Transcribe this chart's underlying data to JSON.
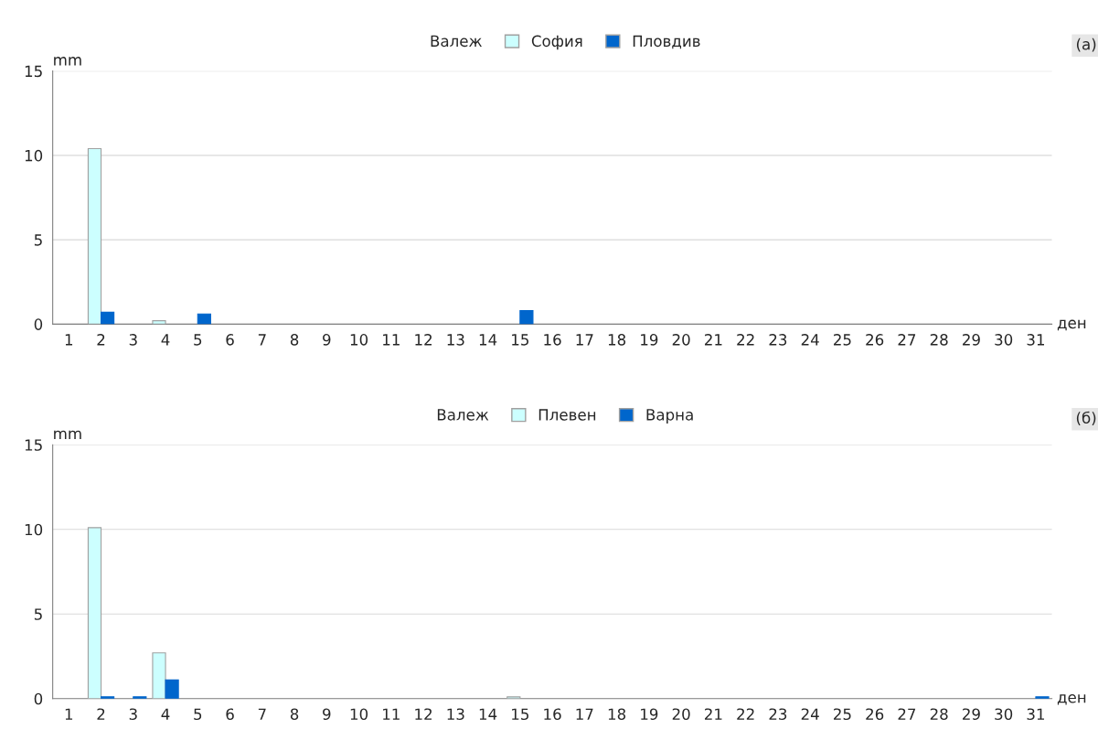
{
  "chart_data": [
    {
      "type": "bar",
      "categories": [
        "1",
        "2",
        "3",
        "4",
        "5",
        "6",
        "7",
        "8",
        "9",
        "10",
        "11",
        "12",
        "13",
        "14",
        "15",
        "16",
        "17",
        "18",
        "19",
        "20",
        "21",
        "22",
        "23",
        "24",
        "25",
        "26",
        "27",
        "28",
        "29",
        "30",
        "31"
      ],
      "series": [
        {
          "name": "София",
          "color": "#ccffff",
          "values": [
            0,
            10.4,
            0,
            0.2,
            0,
            0,
            0,
            0,
            0,
            0,
            0,
            0,
            0,
            0,
            0,
            0,
            0,
            0,
            0,
            0,
            0,
            0,
            0,
            0,
            0,
            0,
            0,
            0,
            0,
            0,
            0
          ]
        },
        {
          "name": "Пловдив",
          "color": "#0066cc",
          "values": [
            0,
            0.7,
            0,
            0,
            0.6,
            0,
            0,
            0,
            0,
            0,
            0,
            0,
            0,
            0,
            0.8,
            0,
            0,
            0,
            0,
            0,
            0,
            0,
            0,
            0,
            0,
            0,
            0,
            0,
            0,
            0,
            0
          ]
        }
      ],
      "legend_title": "Валеж",
      "legend": "top",
      "ylabel": "mm",
      "xlabel": "ден",
      "ylim": [
        0,
        15
      ],
      "yticks": [
        0,
        5,
        10,
        15
      ],
      "grid": "y",
      "annotations": [
        "(а)"
      ]
    },
    {
      "type": "bar",
      "categories": [
        "1",
        "2",
        "3",
        "4",
        "5",
        "6",
        "7",
        "8",
        "9",
        "10",
        "11",
        "12",
        "13",
        "14",
        "15",
        "16",
        "17",
        "18",
        "19",
        "20",
        "21",
        "22",
        "23",
        "24",
        "25",
        "26",
        "27",
        "28",
        "29",
        "30",
        "31"
      ],
      "series": [
        {
          "name": "Плевен",
          "color": "#ccffff",
          "values": [
            0,
            10.1,
            0,
            2.7,
            0,
            0,
            0,
            0,
            0,
            0,
            0,
            0,
            0,
            0,
            0.1,
            0,
            0,
            0,
            0,
            0,
            0,
            0,
            0,
            0,
            0,
            0,
            0,
            0,
            0,
            0,
            0
          ]
        },
        {
          "name": "Варна",
          "color": "#0066cc",
          "values": [
            0,
            0.1,
            0.1,
            1.1,
            0,
            0,
            0,
            0,
            0,
            0,
            0,
            0,
            0,
            0,
            0,
            0,
            0,
            0,
            0,
            0,
            0,
            0,
            0,
            0,
            0,
            0,
            0,
            0,
            0,
            0,
            0.1
          ]
        }
      ],
      "legend_title": "Валеж",
      "legend": "top",
      "ylabel": "mm",
      "xlabel": "ден",
      "ylim": [
        0,
        15
      ],
      "yticks": [
        0,
        5,
        10,
        15
      ],
      "grid": "y",
      "annotations": [
        "(б)"
      ]
    }
  ]
}
